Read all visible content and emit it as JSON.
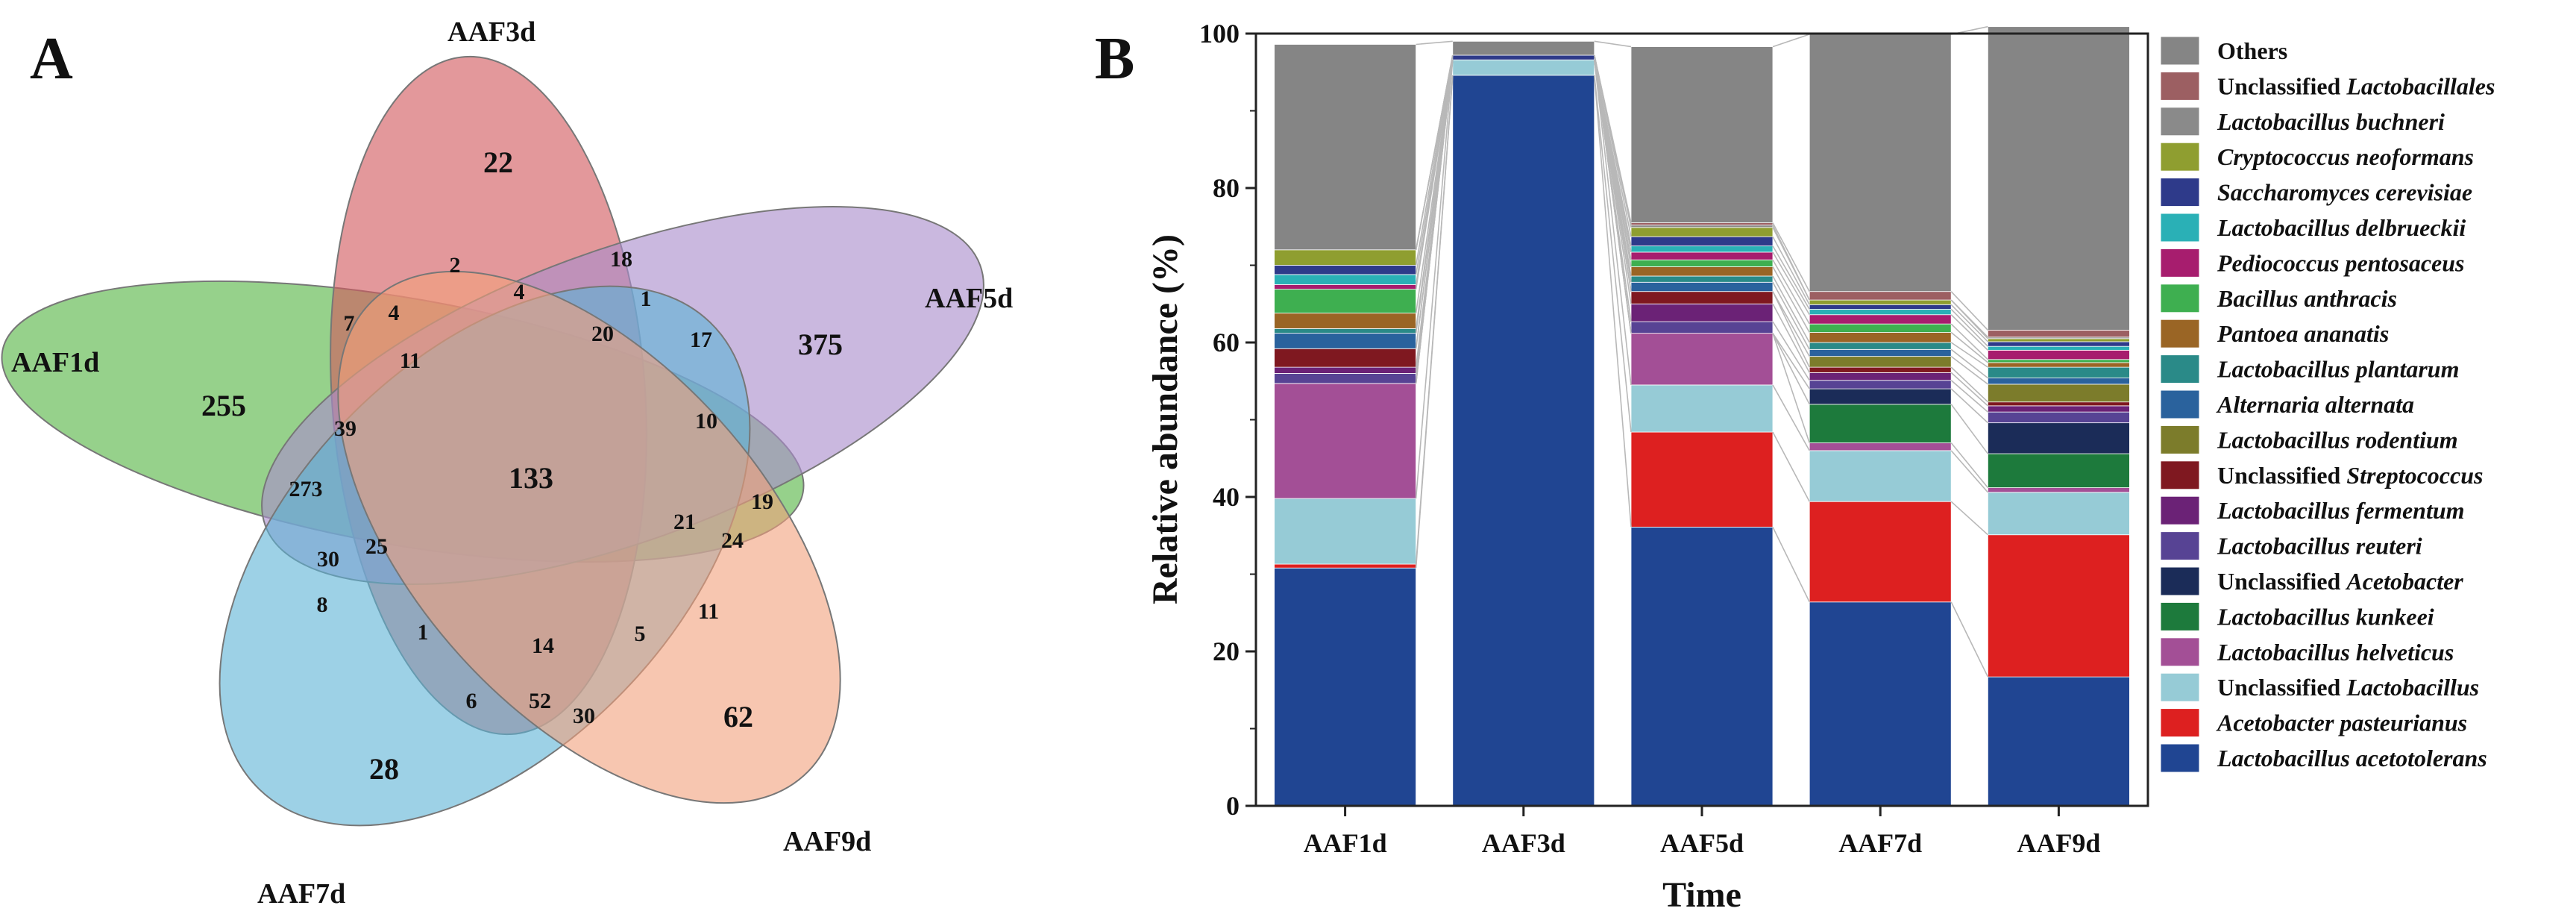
{
  "panel_a": {
    "letter": "A"
  },
  "panel_b": {
    "letter": "B"
  },
  "chart_data": [
    {
      "type": "venn",
      "sets": [
        "AAF1d",
        "AAF3d",
        "AAF5d",
        "AAF7d",
        "AAF9d"
      ],
      "set_colors": {
        "AAF1d": "#6dbf5e",
        "AAF3d": "#d2585e",
        "AAF5d": "#a98ccb",
        "AAF7d": "#5bb3d6",
        "AAF9d": "#f2a07c"
      },
      "regions": [
        {
          "id": "aaf1d_only",
          "value": "255",
          "big": true
        },
        {
          "id": "aaf3d_only",
          "value": "22",
          "big": true
        },
        {
          "id": "aaf5d_only",
          "value": "375",
          "big": true
        },
        {
          "id": "aaf7d_only",
          "value": "28",
          "big": true
        },
        {
          "id": "aaf9d_only",
          "value": "62",
          "big": true
        },
        {
          "id": "all_five",
          "value": "133",
          "big": true
        },
        {
          "id": "r_2",
          "value": "2"
        },
        {
          "id": "r_18",
          "value": "18"
        },
        {
          "id": "r_7",
          "value": "7"
        },
        {
          "id": "r_4a",
          "value": "4"
        },
        {
          "id": "r_4b",
          "value": "4"
        },
        {
          "id": "r_1a",
          "value": "1"
        },
        {
          "id": "r_11a",
          "value": "11"
        },
        {
          "id": "r_20",
          "value": "20"
        },
        {
          "id": "r_17",
          "value": "17"
        },
        {
          "id": "r_39",
          "value": "39"
        },
        {
          "id": "r_10",
          "value": "10"
        },
        {
          "id": "r_273",
          "value": "273"
        },
        {
          "id": "r_19",
          "value": "19"
        },
        {
          "id": "r_21",
          "value": "21"
        },
        {
          "id": "r_24",
          "value": "24"
        },
        {
          "id": "r_25",
          "value": "25"
        },
        {
          "id": "r_30a",
          "value": "30"
        },
        {
          "id": "r_8",
          "value": "8"
        },
        {
          "id": "r_1b",
          "value": "1"
        },
        {
          "id": "r_14",
          "value": "14"
        },
        {
          "id": "r_5",
          "value": "5"
        },
        {
          "id": "r_11b",
          "value": "11"
        },
        {
          "id": "r_6",
          "value": "6"
        },
        {
          "id": "r_52",
          "value": "52"
        },
        {
          "id": "r_30b",
          "value": "30"
        }
      ]
    },
    {
      "type": "bar",
      "stacked": true,
      "categories": [
        "AAF1d",
        "AAF3d",
        "AAF5d",
        "AAF7d",
        "AAF9d"
      ],
      "xlabel": "Time",
      "ylabel": "Relative abundance (%)",
      "ylim": [
        0,
        100
      ],
      "yticks": [
        0,
        20,
        40,
        60,
        80,
        100
      ],
      "series": [
        {
          "name": "Lactobacillus acetotolerans",
          "prefix": "",
          "italic": "Lactobacillus acetotolerans",
          "color": "#204592",
          "values": [
            30.8,
            94.6,
            36.1,
            26.4,
            16.7
          ]
        },
        {
          "name": "Acetobacter pasteurianus",
          "prefix": "",
          "italic": "Acetobacter pasteurianus",
          "color": "#dd2020",
          "values": [
            0.5,
            0.0,
            12.3,
            13.0,
            18.4
          ]
        },
        {
          "name": "Unclassified Lactobacillus",
          "prefix": "Unclassified ",
          "italic": "Lactobacillus",
          "color": "#96cbd6",
          "values": [
            8.5,
            2.0,
            6.1,
            6.6,
            5.5
          ]
        },
        {
          "name": "Lactobacillus helveticus",
          "prefix": "",
          "italic": "Lactobacillus helveticus",
          "color": "#a34f96",
          "values": [
            14.9,
            0.0,
            6.7,
            1.0,
            0.6
          ]
        },
        {
          "name": "Lactobacillus kunkeei",
          "prefix": "",
          "italic": "Lactobacillus kunkeei",
          "color": "#1d7a3c",
          "values": [
            0.0,
            0.0,
            0.0,
            5.0,
            4.4
          ]
        },
        {
          "name": "Unclassified Acetobacter",
          "prefix": "Unclassified ",
          "italic": "Acetobacter",
          "color": "#1b2c58",
          "values": [
            0.0,
            0.0,
            0.0,
            2.0,
            4.0
          ]
        },
        {
          "name": "Lactobacillus reuteri",
          "prefix": "",
          "italic": "Lactobacillus reuteri",
          "color": "#574394",
          "values": [
            1.3,
            0.0,
            1.5,
            1.1,
            1.4
          ]
        },
        {
          "name": "Lactobacillus fermentum",
          "prefix": "",
          "italic": "Lactobacillus fermentum",
          "color": "#6b2276",
          "values": [
            0.8,
            0.0,
            2.3,
            1.0,
            0.8
          ]
        },
        {
          "name": "Unclassified Streptococcus",
          "prefix": "Unclassified ",
          "italic": "Streptococcus",
          "color": "#7f1820",
          "values": [
            2.4,
            0.0,
            1.6,
            0.7,
            0.5
          ]
        },
        {
          "name": "Lactobacillus rodentium",
          "prefix": "",
          "italic": "Lactobacillus rodentium",
          "color": "#7c7c2b",
          "values": [
            0.0,
            0.0,
            0.0,
            1.4,
            2.3
          ]
        },
        {
          "name": "Alternaria alternata",
          "prefix": "",
          "italic": "Alternaria alternata",
          "color": "#2a629d",
          "values": [
            2.0,
            0.0,
            1.2,
            0.9,
            0.8
          ]
        },
        {
          "name": "Lactobacillus plantarum",
          "prefix": "",
          "italic": "Lactobacillus plantarum",
          "color": "#2a8a88",
          "values": [
            0.6,
            0.0,
            0.8,
            0.9,
            1.4
          ]
        },
        {
          "name": "Pantoea ananatis",
          "prefix": "",
          "italic": "Pantoea ananatis",
          "color": "#9a6525",
          "values": [
            2.0,
            0.0,
            1.2,
            1.3,
            0.6
          ]
        },
        {
          "name": "Bacillus anthracis",
          "prefix": "",
          "italic": "Bacillus anthracis",
          "color": "#3eaf50",
          "values": [
            3.1,
            0.0,
            0.9,
            1.1,
            0.4
          ]
        },
        {
          "name": "Pediococcus pentosaceus",
          "prefix": "",
          "italic": "Pediococcus pentosaceus",
          "color": "#a71d6e",
          "values": [
            0.6,
            0.0,
            1.0,
            1.2,
            1.2
          ]
        },
        {
          "name": "Lactobacillus delbrueckii",
          "prefix": "",
          "italic": "Lactobacillus delbrueckii",
          "color": "#2ab0b6",
          "values": [
            1.3,
            0.0,
            0.8,
            0.7,
            0.5
          ]
        },
        {
          "name": "Saccharomyces cerevisiae",
          "prefix": "",
          "italic": "Saccharomyces cerevisiae",
          "color": "#2e3a8a",
          "values": [
            1.2,
            0.6,
            1.2,
            0.6,
            0.6
          ]
        },
        {
          "name": "Cryptococcus neoformans",
          "prefix": "",
          "italic": "Cryptococcus neoformans",
          "color": "#8f9e30",
          "values": [
            2.0,
            0.0,
            1.2,
            0.6,
            0.4
          ]
        },
        {
          "name": "Lactobacillus buchneri",
          "prefix": "",
          "italic": "Lactobacillus buchneri",
          "color": "#8a8a8a",
          "values": [
            0.0,
            0.0,
            0.3,
            0.0,
            0.2
          ]
        },
        {
          "name": "Unclassified Lactobacillales",
          "prefix": "Unclassified ",
          "italic": "Lactobacillales",
          "color": "#9c5f62",
          "values": [
            0.0,
            0.0,
            0.3,
            1.1,
            0.9
          ]
        },
        {
          "name": "Others",
          "prefix": "Others",
          "italic": "",
          "color": "#858585",
          "values": [
            26.6,
            1.8,
            22.8,
            33.3,
            39.3
          ]
        }
      ]
    }
  ]
}
